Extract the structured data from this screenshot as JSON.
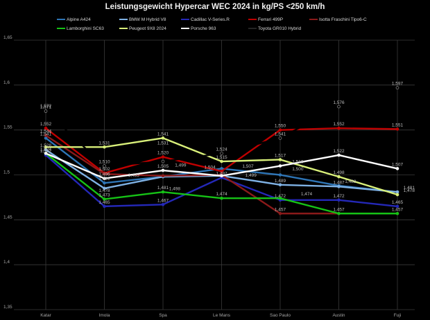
{
  "chart_data": {
    "type": "line",
    "title": "Leistungsgewicht  Hypercar WEC 2024 in kg/PS <250 km/h",
    "xlabel": "",
    "ylabel": "",
    "categories": [
      "Katar",
      "Imola",
      "Spa",
      "Le Mans",
      "Sao Paulo",
      "Austin",
      "Fuji"
    ],
    "ylim": [
      1.35,
      1.65
    ],
    "yticks": [
      "1,35",
      "1,4",
      "1,45",
      "1,5",
      "1,55",
      "1,6",
      "1,65"
    ],
    "ytick_values": [
      1.35,
      1.4,
      1.45,
      1.5,
      1.55,
      1.6,
      1.65
    ],
    "grid": true,
    "legend_position": "top",
    "series": [
      {
        "name": "Alpine A424",
        "color": "#2e75b6",
        "values": [
          1.541,
          1.491,
          1.498,
          1.507,
          1.5,
          1.488,
          1.481
        ]
      },
      {
        "name": "BMW M Hybrid V8",
        "color": "#7fb2e5",
        "values": [
          1.528,
          1.485,
          1.498,
          1.499,
          1.489,
          1.487,
          1.481
        ]
      },
      {
        "name": "Cadillac V-Series.R",
        "color": "#2428b8",
        "values": [
          1.522,
          1.465,
          1.467,
          1.497,
          1.472,
          1.472,
          1.465
        ]
      },
      {
        "name": "Ferrari 499P",
        "color": "#c00000",
        "values": [
          1.552,
          1.502,
          1.52,
          1.504,
          1.55,
          1.552,
          1.551
        ]
      },
      {
        "name": "Isotta Fraschini Tipo6-C",
        "color": "#8b1a1a",
        "values": [
          1.544,
          1.501,
          1.499,
          1.5,
          1.457,
          1.457,
          1.457
        ]
      },
      {
        "name": "Lamborghini SC63",
        "color": "#16c316",
        "values": [
          1.524,
          1.473,
          1.481,
          1.474,
          1.474,
          1.457,
          1.457
        ]
      },
      {
        "name": "Peugeot 9X8 2024",
        "color": "#d9f07a",
        "values": [
          1.531,
          1.531,
          1.541,
          1.515,
          1.517,
          1.498,
          1.478
        ]
      },
      {
        "name": "Porsche 963",
        "color": "#ffffff",
        "values": [
          1.524,
          1.496,
          1.505,
          1.499,
          1.51,
          1.522,
          1.507
        ]
      },
      {
        "name": "Toyota GR010 Hybrid",
        "color": "#1a1a1a",
        "values": [
          1.571,
          1.51,
          1.515,
          1.524,
          1.541,
          1.576,
          1.597
        ]
      }
    ],
    "data_labels": [
      {
        "text": "1,572",
        "x": 0,
        "v": 1.572
      },
      {
        "text": "1,571",
        "x": 0,
        "v": 1.571
      },
      {
        "text": "1,552",
        "x": 0,
        "v": 1.552
      },
      {
        "text": "1,544",
        "x": 0,
        "v": 1.544
      },
      {
        "text": "1,541",
        "x": 0,
        "v": 1.541
      },
      {
        "text": "1,528",
        "x": 0,
        "v": 1.528
      },
      {
        "text": "1,524",
        "x": 0,
        "v": 1.524
      },
      {
        "text": "1,522",
        "x": 0,
        "v": 1.522
      },
      {
        "text": "1,531",
        "x": 1,
        "v": 1.531
      },
      {
        "text": "1,510",
        "x": 1,
        "v": 1.51
      },
      {
        "text": "1,502",
        "x": 1,
        "v": 1.502
      },
      {
        "text": "1,496",
        "x": 1,
        "v": 1.496
      },
      {
        "text": "1,491",
        "x": 1,
        "v": 1.491
      },
      {
        "text": "1,478",
        "x": 1,
        "v": 1.478
      },
      {
        "text": "1,473",
        "x": 1,
        "v": 1.473
      },
      {
        "text": "1,465",
        "x": 1,
        "v": 1.465
      },
      {
        "text": "1,485",
        "x": 1.5,
        "v": 1.495
      },
      {
        "text": "1,541",
        "x": 2,
        "v": 1.541
      },
      {
        "text": "1,531",
        "x": 2,
        "v": 1.531
      },
      {
        "text": "1,520",
        "x": 2,
        "v": 1.52
      },
      {
        "text": "1,505",
        "x": 2,
        "v": 1.505
      },
      {
        "text": "1,499",
        "x": 2.3,
        "v": 1.506
      },
      {
        "text": "1,498",
        "x": 2.2,
        "v": 1.48
      },
      {
        "text": "1,481",
        "x": 2,
        "v": 1.481
      },
      {
        "text": "1,467",
        "x": 2,
        "v": 1.467
      },
      {
        "text": "1,524",
        "x": 3,
        "v": 1.524
      },
      {
        "text": "1,515",
        "x": 3,
        "v": 1.515
      },
      {
        "text": "1,507",
        "x": 3.45,
        "v": 1.505
      },
      {
        "text": "1,504",
        "x": 2.8,
        "v": 1.504
      },
      {
        "text": "1,499",
        "x": 3.5,
        "v": 1.495
      },
      {
        "text": "1,497",
        "x": 3,
        "v": 1.497
      },
      {
        "text": "1,474",
        "x": 3,
        "v": 1.474
      },
      {
        "text": "1,550",
        "x": 4,
        "v": 1.55
      },
      {
        "text": "1,541",
        "x": 4,
        "v": 1.541
      },
      {
        "text": "1,517",
        "x": 4,
        "v": 1.517
      },
      {
        "text": "1,510",
        "x": 4.3,
        "v": 1.51
      },
      {
        "text": "1,500",
        "x": 4.3,
        "v": 1.502
      },
      {
        "text": "1,489",
        "x": 4,
        "v": 1.489
      },
      {
        "text": "1,474",
        "x": 4.45,
        "v": 1.474
      },
      {
        "text": "1,472",
        "x": 4,
        "v": 1.472
      },
      {
        "text": "1,457",
        "x": 4,
        "v": 1.457
      },
      {
        "text": "1,576",
        "x": 5,
        "v": 1.576
      },
      {
        "text": "1,552",
        "x": 5,
        "v": 1.552
      },
      {
        "text": "1,522",
        "x": 5,
        "v": 1.522
      },
      {
        "text": "1,498",
        "x": 5,
        "v": 1.498
      },
      {
        "text": "1,488",
        "x": 5.2,
        "v": 1.488
      },
      {
        "text": "1,487",
        "x": 5,
        "v": 1.487
      },
      {
        "text": "1,472",
        "x": 5,
        "v": 1.472
      },
      {
        "text": "1,457",
        "x": 5,
        "v": 1.457
      },
      {
        "text": "1,597",
        "x": 6,
        "v": 1.597
      },
      {
        "text": "1,551",
        "x": 6,
        "v": 1.551
      },
      {
        "text": "1,507",
        "x": 6,
        "v": 1.507
      },
      {
        "text": "1,481",
        "x": 6.2,
        "v": 1.481
      },
      {
        "text": "1,478",
        "x": 6.2,
        "v": 1.478
      },
      {
        "text": "1,465",
        "x": 6,
        "v": 1.465
      },
      {
        "text": "1,457",
        "x": 6,
        "v": 1.457
      }
    ]
  }
}
